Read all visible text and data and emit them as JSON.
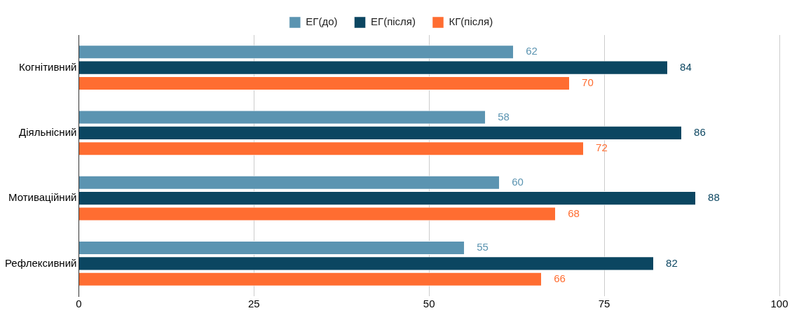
{
  "chart_data": {
    "type": "bar",
    "orientation": "horizontal",
    "categories": [
      "Когнітивний",
      "Діяльнісний",
      "Мотиваційний",
      "Рефлексивний"
    ],
    "series": [
      {
        "name": "ЕГ(до)",
        "color": "#5b94b1",
        "values": [
          62,
          58,
          60,
          55
        ]
      },
      {
        "name": "ЕГ(після)",
        "color": "#0b4661",
        "values": [
          84,
          86,
          88,
          82
        ]
      },
      {
        "name": "КГ(після)",
        "color": "#ff6d31",
        "values": [
          70,
          72,
          68,
          66
        ]
      }
    ],
    "xlim": [
      0,
      100
    ],
    "xticks": [
      0,
      25,
      50,
      75,
      100
    ],
    "grid": "x",
    "legend": "top",
    "data_labels": true
  }
}
